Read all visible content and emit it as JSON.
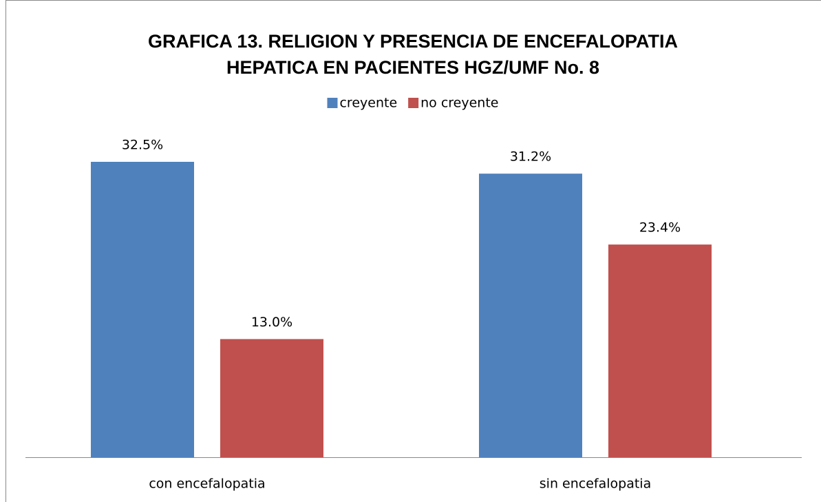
{
  "chart_data": {
    "type": "bar",
    "title": [
      "GRAFICA 13. RELIGION Y PRESENCIA  DE ENCEFALOPATIA",
      "HEPATICA EN  PACIENTES HGZ/UMF No. 8"
    ],
    "categories": [
      "con encefalopatia",
      "sin encefalopatia"
    ],
    "series": [
      {
        "name": "creyente",
        "color": "#4f81bd",
        "values": [
          32.5,
          31.2
        ],
        "value_labels": [
          "32.5%",
          "31.2%"
        ]
      },
      {
        "name": "no creyente",
        "color": "#c0504d",
        "values": [
          13.0,
          23.4
        ],
        "value_labels": [
          "13.0%",
          "23.4%"
        ]
      }
    ],
    "legend": "top"
  }
}
